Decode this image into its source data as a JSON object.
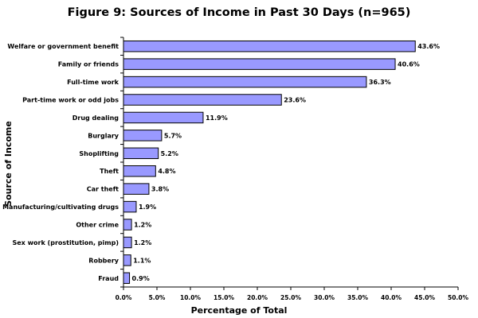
{
  "chart_data": {
    "type": "bar",
    "orientation": "horizontal",
    "title": "Figure 9: Sources of Income in Past 30 Days (n=965)",
    "xlabel": "Percentage of Total",
    "ylabel": "Source of Income",
    "xlim": [
      0,
      50
    ],
    "x_ticks": [
      "0.0%",
      "5.0%",
      "10.0%",
      "15.0%",
      "20.0%",
      "25.0%",
      "30.0%",
      "35.0%",
      "40.0%",
      "45.0%",
      "50.0%"
    ],
    "grid": false,
    "bar_color": "#9999ff",
    "categories": [
      "Welfare or government benefit",
      "Family or friends",
      "Full-time work",
      "Part-time work or odd jobs",
      "Drug dealing",
      "Burglary",
      "Shoplifting",
      "Theft",
      "Car theft",
      "Manufacturing/cultivating drugs",
      "Other crime",
      "Sex work (prostitution, pimp)",
      "Robbery",
      "Fraud"
    ],
    "values": [
      43.6,
      40.6,
      36.3,
      23.6,
      11.9,
      5.7,
      5.2,
      4.8,
      3.8,
      1.9,
      1.2,
      1.2,
      1.1,
      0.9
    ],
    "value_labels": [
      "43.6%",
      "40.6%",
      "36.3%",
      "23.6%",
      "11.9%",
      "5.7%",
      "5.2%",
      "4.8%",
      "3.8%",
      "1.9%",
      "1.2%",
      "1.2%",
      "1.1%",
      "0.9%"
    ]
  }
}
